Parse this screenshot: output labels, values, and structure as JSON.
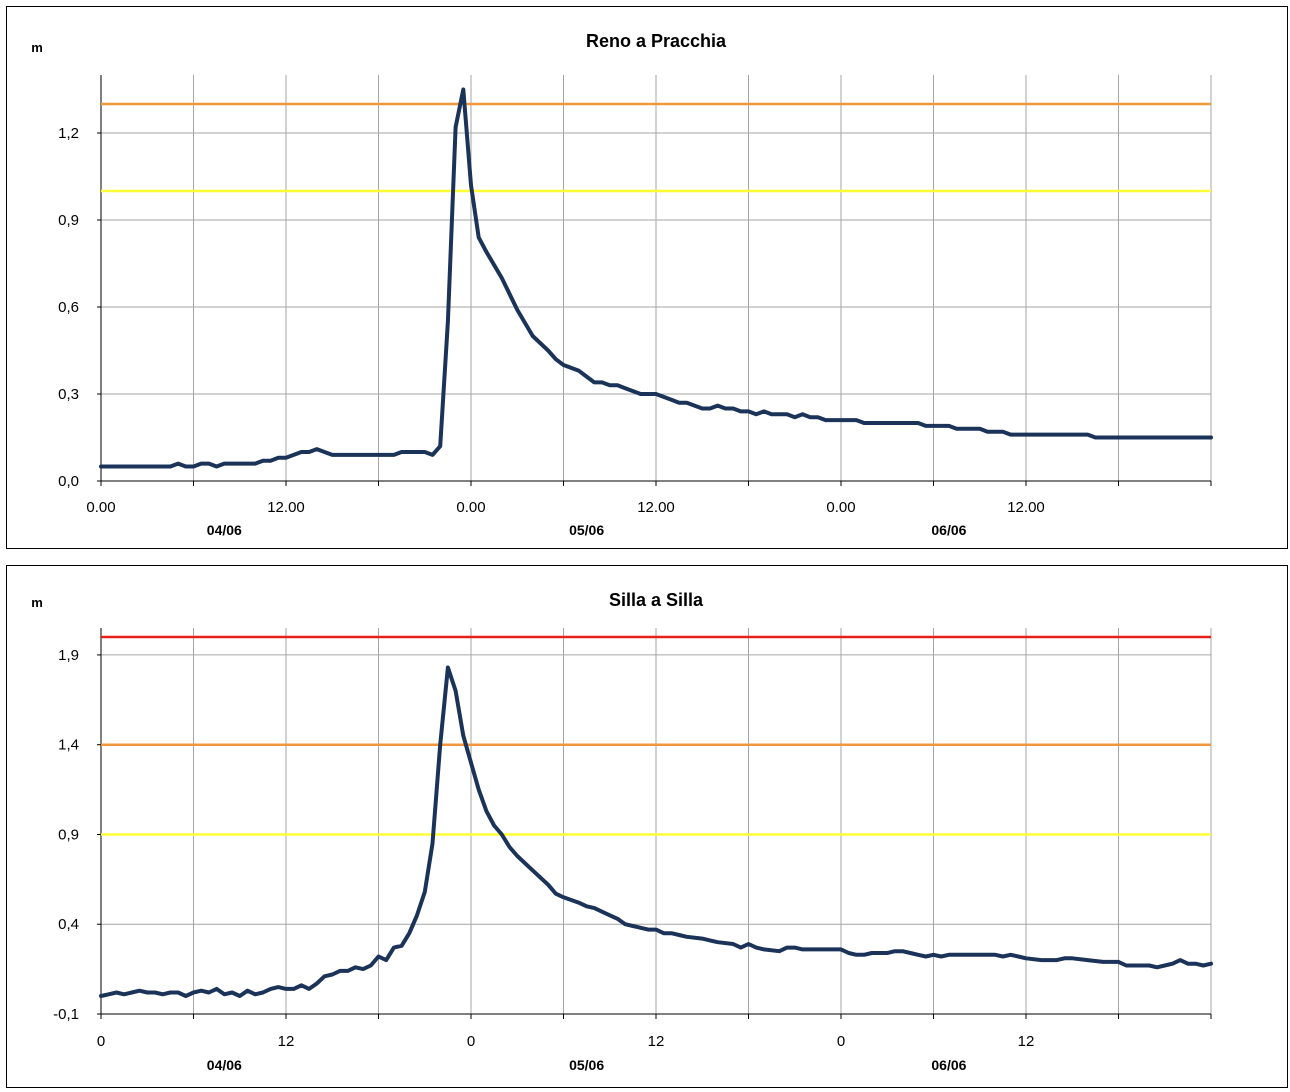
{
  "chart_data": [
    {
      "type": "line",
      "title": "Reno a Pracchia",
      "ylabel": "m",
      "ylim": [
        0.0,
        1.4
      ],
      "y_ticks": [
        "0,0",
        "0,3",
        "0,6",
        "0,9",
        "1,2"
      ],
      "y_tick_values": [
        0.0,
        0.3,
        0.6,
        0.9,
        1.2
      ],
      "x_range_hours": [
        0,
        72
      ],
      "x_tick_labels": [
        "0.00",
        "12.00",
        "0.00",
        "12.00",
        "0.00",
        "12.00"
      ],
      "x_tick_label_hours": [
        0,
        12,
        24,
        36,
        48,
        60
      ],
      "date_labels": [
        "04/06",
        "05/06",
        "06/06"
      ],
      "date_label_hours": [
        8,
        31.5,
        55
      ],
      "grid": true,
      "thresholds": [
        {
          "value": 1.3,
          "color": "#f0963c"
        },
        {
          "value": 1.0,
          "color": "#ffff33"
        }
      ],
      "series": [
        {
          "color": "#1b3358",
          "points": [
            [
              0,
              0.05
            ],
            [
              1,
              0.05
            ],
            [
              2,
              0.05
            ],
            [
              3,
              0.05
            ],
            [
              4,
              0.05
            ],
            [
              4.5,
              0.05
            ],
            [
              5,
              0.06
            ],
            [
              5.5,
              0.05
            ],
            [
              6,
              0.05
            ],
            [
              6.5,
              0.06
            ],
            [
              7,
              0.06
            ],
            [
              7.5,
              0.05
            ],
            [
              8,
              0.06
            ],
            [
              9,
              0.06
            ],
            [
              10,
              0.06
            ],
            [
              10.5,
              0.07
            ],
            [
              11,
              0.07
            ],
            [
              11.5,
              0.08
            ],
            [
              12,
              0.08
            ],
            [
              12.5,
              0.09
            ],
            [
              13,
              0.1
            ],
            [
              13.5,
              0.1
            ],
            [
              14,
              0.11
            ],
            [
              14.5,
              0.1
            ],
            [
              15,
              0.09
            ],
            [
              16,
              0.09
            ],
            [
              17,
              0.09
            ],
            [
              18,
              0.09
            ],
            [
              19,
              0.09
            ],
            [
              19.5,
              0.1
            ],
            [
              20,
              0.1
            ],
            [
              20.5,
              0.1
            ],
            [
              21,
              0.1
            ],
            [
              21.5,
              0.09
            ],
            [
              22,
              0.12
            ],
            [
              22.5,
              0.55
            ],
            [
              23,
              1.22
            ],
            [
              23.5,
              1.35
            ],
            [
              24,
              1.02
            ],
            [
              24.5,
              0.84
            ],
            [
              25,
              0.79
            ],
            [
              26,
              0.7
            ],
            [
              27,
              0.59
            ],
            [
              28,
              0.5
            ],
            [
              29,
              0.45
            ],
            [
              29.5,
              0.42
            ],
            [
              30,
              0.4
            ],
            [
              31,
              0.38
            ],
            [
              31.5,
              0.36
            ],
            [
              32,
              0.34
            ],
            [
              32.5,
              0.34
            ],
            [
              33,
              0.33
            ],
            [
              33.5,
              0.33
            ],
            [
              34,
              0.32
            ],
            [
              35,
              0.3
            ],
            [
              36,
              0.3
            ],
            [
              36.5,
              0.29
            ],
            [
              37,
              0.28
            ],
            [
              37.5,
              0.27
            ],
            [
              38,
              0.27
            ],
            [
              38.5,
              0.26
            ],
            [
              39,
              0.25
            ],
            [
              39.5,
              0.25
            ],
            [
              40,
              0.26
            ],
            [
              40.5,
              0.25
            ],
            [
              41,
              0.25
            ],
            [
              41.5,
              0.24
            ],
            [
              42,
              0.24
            ],
            [
              42.5,
              0.23
            ],
            [
              43,
              0.24
            ],
            [
              43.5,
              0.23
            ],
            [
              44,
              0.23
            ],
            [
              44.5,
              0.23
            ],
            [
              45,
              0.22
            ],
            [
              45.5,
              0.23
            ],
            [
              46,
              0.22
            ],
            [
              46.5,
              0.22
            ],
            [
              47,
              0.21
            ],
            [
              48,
              0.21
            ],
            [
              49,
              0.21
            ],
            [
              49.5,
              0.2
            ],
            [
              50,
              0.2
            ],
            [
              51,
              0.2
            ],
            [
              52,
              0.2
            ],
            [
              53,
              0.2
            ],
            [
              53.5,
              0.19
            ],
            [
              54,
              0.19
            ],
            [
              55,
              0.19
            ],
            [
              55.5,
              0.18
            ],
            [
              56,
              0.18
            ],
            [
              57,
              0.18
            ],
            [
              57.5,
              0.17
            ],
            [
              58,
              0.17
            ],
            [
              58.5,
              0.17
            ],
            [
              59,
              0.16
            ],
            [
              60,
              0.16
            ],
            [
              61,
              0.16
            ],
            [
              62,
              0.16
            ],
            [
              63,
              0.16
            ],
            [
              64,
              0.16
            ],
            [
              64.5,
              0.15
            ],
            [
              65,
              0.15
            ],
            [
              66,
              0.15
            ],
            [
              67,
              0.15
            ],
            [
              68,
              0.15
            ],
            [
              69,
              0.15
            ],
            [
              70,
              0.15
            ],
            [
              71,
              0.15
            ],
            [
              72,
              0.15
            ]
          ]
        }
      ]
    },
    {
      "type": "line",
      "title": "Silla a Silla",
      "ylabel": "m",
      "ylim": [
        -0.1,
        2.05
      ],
      "y_ticks": [
        "-0,1",
        "0,4",
        "0,9",
        "1,4",
        "1,9"
      ],
      "y_tick_values": [
        -0.1,
        0.4,
        0.9,
        1.4,
        1.9
      ],
      "x_range_hours": [
        0,
        72
      ],
      "x_tick_labels": [
        "0",
        "12",
        "0",
        "12",
        "0",
        "12"
      ],
      "x_tick_label_hours": [
        0,
        12,
        24,
        36,
        48,
        60
      ],
      "date_labels": [
        "04/06",
        "05/06",
        "06/06"
      ],
      "date_label_hours": [
        8,
        31.5,
        55
      ],
      "grid": true,
      "thresholds": [
        {
          "value": 2.0,
          "color": "#e8201a"
        },
        {
          "value": 1.4,
          "color": "#f0963c"
        },
        {
          "value": 0.9,
          "color": "#ffff33"
        }
      ],
      "series": [
        {
          "color": "#1b3358",
          "points": [
            [
              0,
              0.0
            ],
            [
              0.5,
              0.01
            ],
            [
              1,
              0.02
            ],
            [
              1.5,
              0.01
            ],
            [
              2,
              0.02
            ],
            [
              2.5,
              0.03
            ],
            [
              3,
              0.02
            ],
            [
              3.5,
              0.02
            ],
            [
              4,
              0.01
            ],
            [
              4.5,
              0.02
            ],
            [
              5,
              0.02
            ],
            [
              5.5,
              0.0
            ],
            [
              6,
              0.02
            ],
            [
              6.5,
              0.03
            ],
            [
              7,
              0.02
            ],
            [
              7.5,
              0.04
            ],
            [
              8,
              0.01
            ],
            [
              8.5,
              0.02
            ],
            [
              9,
              0.0
            ],
            [
              9.5,
              0.03
            ],
            [
              10,
              0.01
            ],
            [
              10.5,
              0.02
            ],
            [
              11,
              0.04
            ],
            [
              11.5,
              0.05
            ],
            [
              12,
              0.04
            ],
            [
              12.5,
              0.04
            ],
            [
              13,
              0.06
            ],
            [
              13.5,
              0.04
            ],
            [
              14,
              0.07
            ],
            [
              14.5,
              0.11
            ],
            [
              15,
              0.12
            ],
            [
              15.5,
              0.14
            ],
            [
              16,
              0.14
            ],
            [
              16.5,
              0.16
            ],
            [
              17,
              0.15
            ],
            [
              17.5,
              0.17
            ],
            [
              18,
              0.22
            ],
            [
              18.5,
              0.2
            ],
            [
              19,
              0.27
            ],
            [
              19.5,
              0.28
            ],
            [
              20,
              0.35
            ],
            [
              20.5,
              0.45
            ],
            [
              21,
              0.58
            ],
            [
              21.5,
              0.85
            ],
            [
              22,
              1.4
            ],
            [
              22.5,
              1.83
            ],
            [
              23,
              1.7
            ],
            [
              23.5,
              1.45
            ],
            [
              24,
              1.3
            ],
            [
              24.5,
              1.15
            ],
            [
              25,
              1.03
            ],
            [
              25.5,
              0.95
            ],
            [
              26,
              0.9
            ],
            [
              26.5,
              0.83
            ],
            [
              27,
              0.78
            ],
            [
              28,
              0.7
            ],
            [
              28.5,
              0.66
            ],
            [
              29,
              0.62
            ],
            [
              29.5,
              0.57
            ],
            [
              30,
              0.55
            ],
            [
              31,
              0.52
            ],
            [
              31.5,
              0.5
            ],
            [
              32,
              0.49
            ],
            [
              32.5,
              0.47
            ],
            [
              33,
              0.45
            ],
            [
              33.5,
              0.43
            ],
            [
              34,
              0.4
            ],
            [
              34.5,
              0.39
            ],
            [
              35,
              0.38
            ],
            [
              35.5,
              0.37
            ],
            [
              36,
              0.37
            ],
            [
              36.5,
              0.35
            ],
            [
              37,
              0.35
            ],
            [
              37.5,
              0.34
            ],
            [
              38,
              0.33
            ],
            [
              39,
              0.32
            ],
            [
              39.5,
              0.31
            ],
            [
              40,
              0.3
            ],
            [
              41,
              0.29
            ],
            [
              41.5,
              0.27
            ],
            [
              42,
              0.29
            ],
            [
              42.5,
              0.27
            ],
            [
              43,
              0.26
            ],
            [
              44,
              0.25
            ],
            [
              44.5,
              0.27
            ],
            [
              45,
              0.27
            ],
            [
              45.5,
              0.26
            ],
            [
              46,
              0.26
            ],
            [
              47,
              0.26
            ],
            [
              48,
              0.26
            ],
            [
              48.5,
              0.24
            ],
            [
              49,
              0.23
            ],
            [
              49.5,
              0.23
            ],
            [
              50,
              0.24
            ],
            [
              51,
              0.24
            ],
            [
              51.5,
              0.25
            ],
            [
              52,
              0.25
            ],
            [
              52.5,
              0.24
            ],
            [
              53,
              0.23
            ],
            [
              53.5,
              0.22
            ],
            [
              54,
              0.23
            ],
            [
              54.5,
              0.22
            ],
            [
              55,
              0.23
            ],
            [
              56,
              0.23
            ],
            [
              57,
              0.23
            ],
            [
              58,
              0.23
            ],
            [
              58.5,
              0.22
            ],
            [
              59,
              0.23
            ],
            [
              59.5,
              0.22
            ],
            [
              60,
              0.21
            ],
            [
              61,
              0.2
            ],
            [
              62,
              0.2
            ],
            [
              62.5,
              0.21
            ],
            [
              63,
              0.21
            ],
            [
              64,
              0.2
            ],
            [
              65,
              0.19
            ],
            [
              66,
              0.19
            ],
            [
              66.5,
              0.17
            ],
            [
              67,
              0.17
            ],
            [
              68,
              0.17
            ],
            [
              68.5,
              0.16
            ],
            [
              69,
              0.17
            ],
            [
              69.5,
              0.18
            ],
            [
              70,
              0.2
            ],
            [
              70.5,
              0.18
            ],
            [
              71,
              0.18
            ],
            [
              71.5,
              0.17
            ],
            [
              72,
              0.18
            ]
          ]
        }
      ]
    }
  ]
}
